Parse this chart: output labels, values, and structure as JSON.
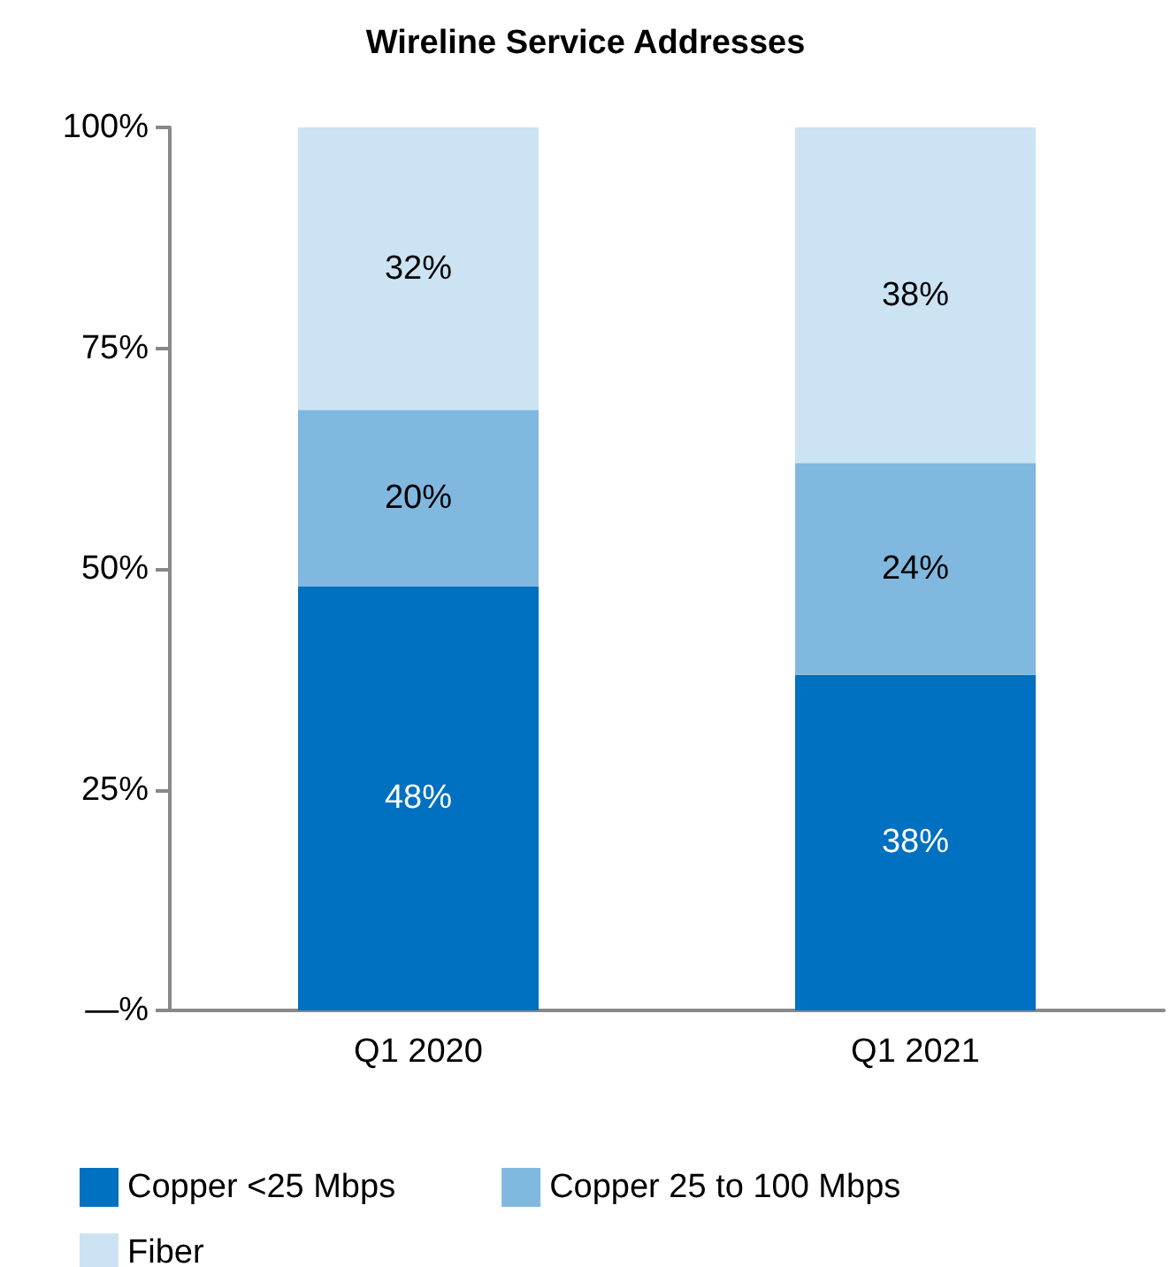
{
  "chart_data": {
    "type": "bar",
    "title": "Wireline Service Addresses",
    "categories": [
      "Q1 2020",
      "Q1 2021"
    ],
    "stacked": true,
    "series": [
      {
        "name": "Copper <25 Mbps",
        "color": "#0070c0",
        "values": [
          48,
          38
        ],
        "value_labels": [
          "48%",
          "38%"
        ]
      },
      {
        "name": "Copper 25 to 100 Mbps",
        "color": "#80b8e0",
        "values": [
          20,
          24
        ],
        "value_labels": [
          "20%",
          "24%"
        ]
      },
      {
        "name": "Fiber",
        "color": "#cce3f3",
        "values": [
          32,
          38
        ],
        "value_labels": [
          "32%",
          "38%"
        ]
      }
    ],
    "ylim": [
      0,
      100
    ],
    "yticks": [
      {
        "value": 0,
        "label": "—%"
      },
      {
        "value": 25,
        "label": "25%"
      },
      {
        "value": 50,
        "label": "50%"
      },
      {
        "value": 75,
        "label": "75%"
      },
      {
        "value": 100,
        "label": "100%"
      }
    ],
    "grid": false,
    "legend": "bottom"
  }
}
